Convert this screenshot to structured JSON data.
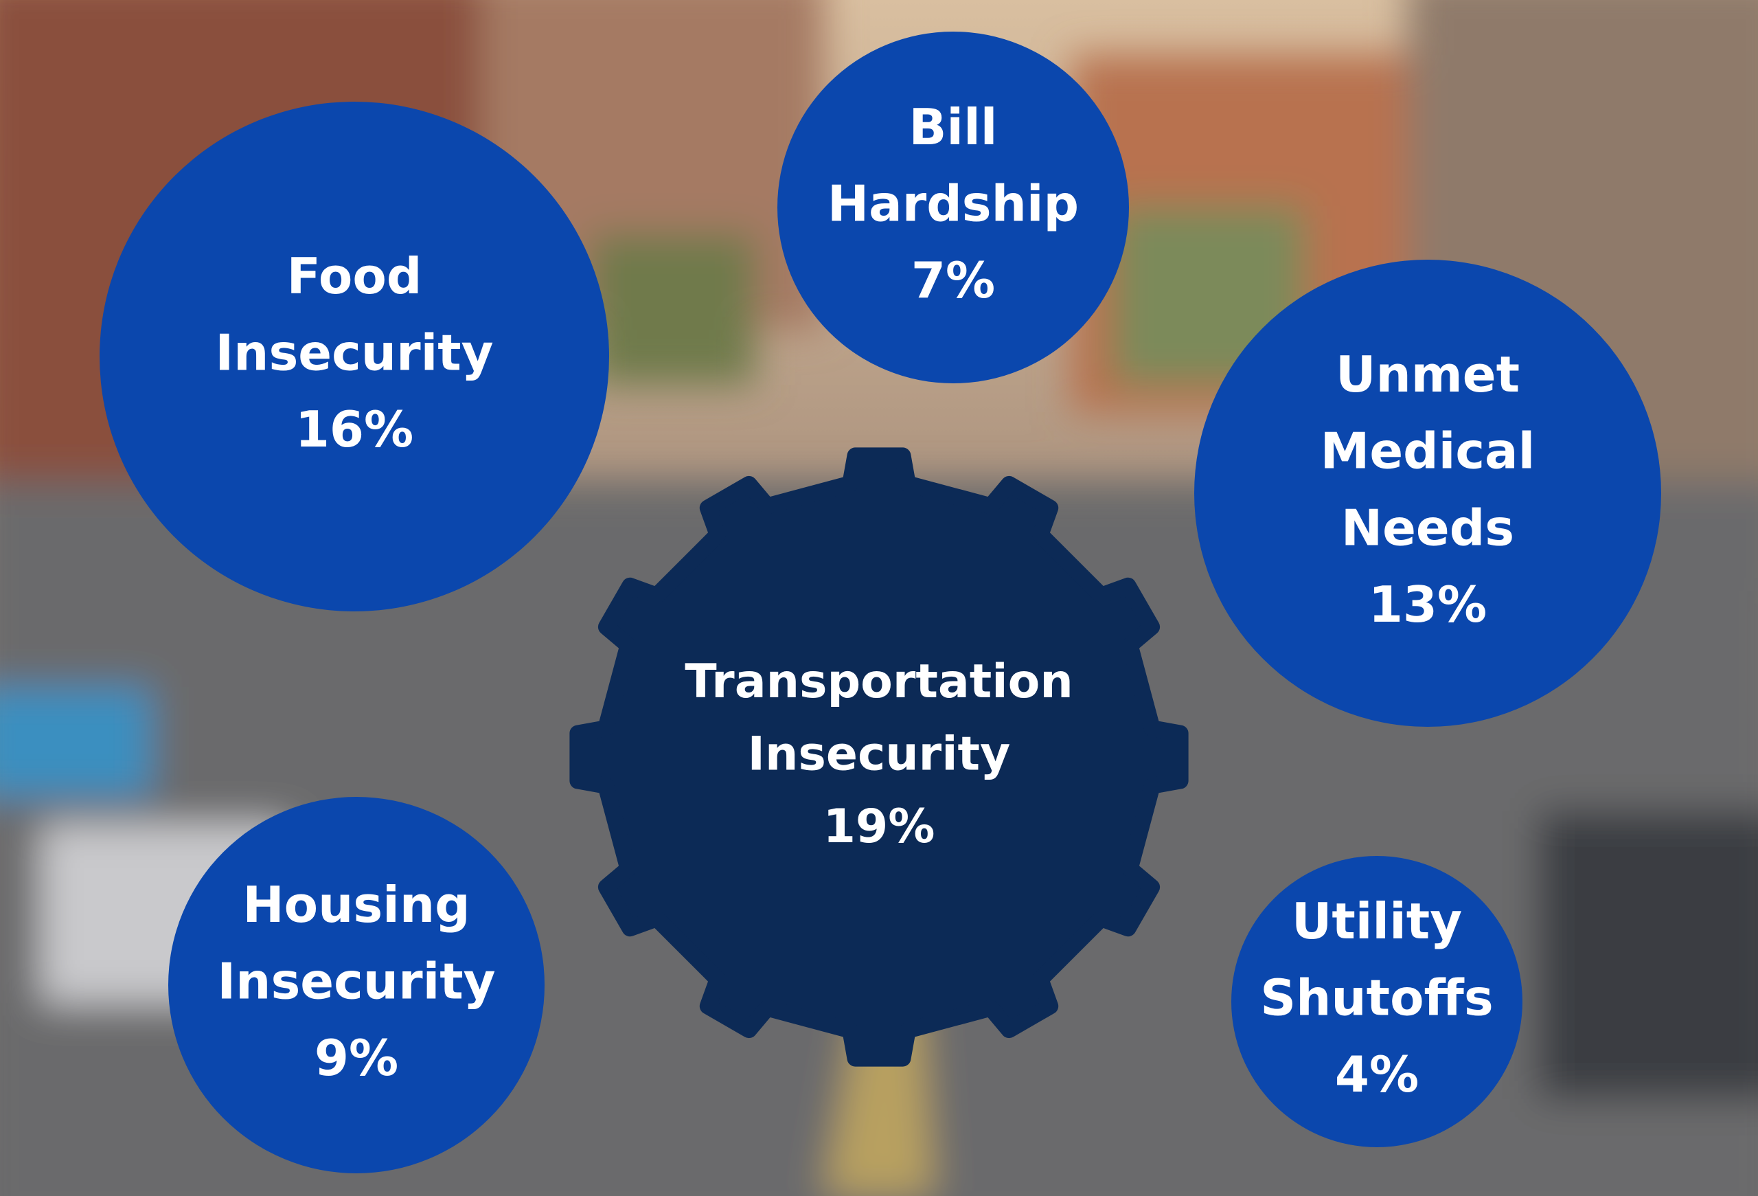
{
  "nodes": [
    {
      "label": [
        "Transportation",
        "Insecurity"
      ],
      "value": "19%"
    },
    {
      "label": [
        "Food",
        "Insecurity"
      ],
      "value": "16%"
    },
    {
      "label": [
        "Bill",
        "Hardship"
      ],
      "value": "7%"
    },
    {
      "label": [
        "Unmet",
        "Medical",
        "Needs"
      ],
      "value": "13%"
    },
    {
      "label": [
        "Housing",
        "Insecurity"
      ],
      "value": "9%"
    },
    {
      "label": [
        "Utility",
        "Shutoffs"
      ],
      "value": "4%"
    }
  ]
}
